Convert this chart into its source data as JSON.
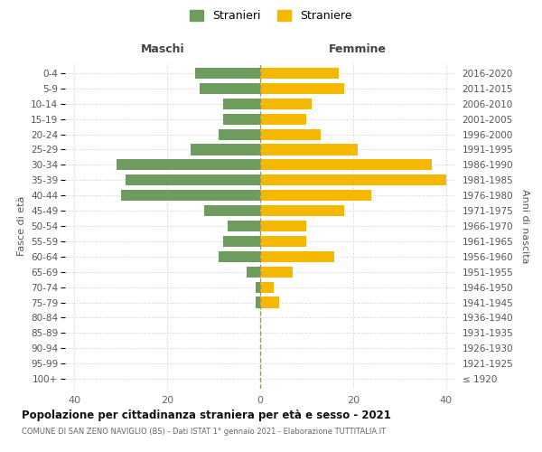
{
  "age_groups": [
    "100+",
    "95-99",
    "90-94",
    "85-89",
    "80-84",
    "75-79",
    "70-74",
    "65-69",
    "60-64",
    "55-59",
    "50-54",
    "45-49",
    "40-44",
    "35-39",
    "30-34",
    "25-29",
    "20-24",
    "15-19",
    "10-14",
    "5-9",
    "0-4"
  ],
  "birth_years": [
    "≤ 1920",
    "1921-1925",
    "1926-1930",
    "1931-1935",
    "1936-1940",
    "1941-1945",
    "1946-1950",
    "1951-1955",
    "1956-1960",
    "1961-1965",
    "1966-1970",
    "1971-1975",
    "1976-1980",
    "1981-1985",
    "1986-1990",
    "1991-1995",
    "1996-2000",
    "2001-2005",
    "2006-2010",
    "2011-2015",
    "2016-2020"
  ],
  "maschi": [
    0,
    0,
    0,
    0,
    0,
    1,
    1,
    3,
    9,
    8,
    7,
    12,
    30,
    29,
    31,
    15,
    9,
    8,
    8,
    13,
    14
  ],
  "femmine": [
    0,
    0,
    0,
    0,
    0,
    4,
    3,
    7,
    16,
    10,
    10,
    18,
    24,
    40,
    37,
    21,
    13,
    10,
    11,
    18,
    17
  ],
  "color_maschi": "#6e9b5e",
  "color_femmine": "#f5b800",
  "color_grid": "#cccccc",
  "color_center_line": "#999966",
  "title": "Popolazione per cittadinanza straniera per età e sesso - 2021",
  "subtitle": "COMUNE DI SAN ZENO NAVIGLIO (BS) - Dati ISTAT 1° gennaio 2021 - Elaborazione TUTTITALIA.IT",
  "label_maschi": "Maschi",
  "label_femmine": "Femmine",
  "ylabel_left": "Fasce di età",
  "ylabel_right": "Anni di nascita",
  "legend_maschi": "Stranieri",
  "legend_femmine": "Straniere",
  "xlim": 42
}
